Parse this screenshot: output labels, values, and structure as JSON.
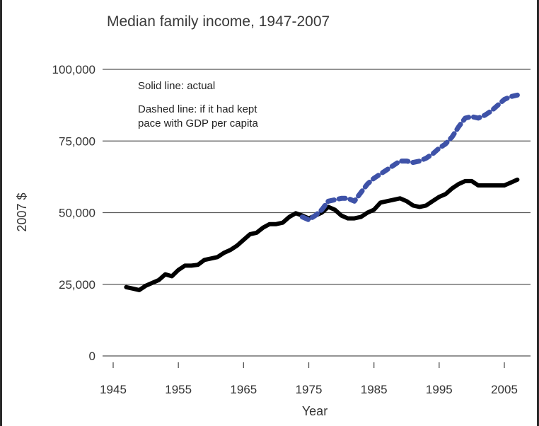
{
  "chart_data": {
    "type": "line",
    "title": "Median family income, 1947-2007",
    "xlabel": "Year",
    "ylabel": "2007 $",
    "xlim": [
      1945,
      2008
    ],
    "ylim": [
      0,
      100000
    ],
    "x_ticks": [
      1945,
      1955,
      1965,
      1975,
      1985,
      1995,
      2005
    ],
    "y_ticks": [
      0,
      25000,
      50000,
      75000,
      100000
    ],
    "x_tick_labels": [
      "1945",
      "1955",
      "1965",
      "1975",
      "1985",
      "1995",
      "2005"
    ],
    "y_tick_labels": [
      "0",
      "25,000",
      "50,000",
      "75,000",
      "100,000"
    ],
    "grid": "horizontal",
    "annotations": [
      "Solid line: actual",
      "Dashed line: if it had kept",
      "pace with GDP per capita"
    ],
    "series": [
      {
        "name": "actual",
        "style": "solid",
        "color": "#000000",
        "x": [
          1947,
          1948,
          1949,
          1950,
          1951,
          1952,
          1953,
          1954,
          1955,
          1956,
          1957,
          1958,
          1959,
          1960,
          1961,
          1962,
          1963,
          1964,
          1965,
          1966,
          1967,
          1968,
          1969,
          1970,
          1971,
          1972,
          1973,
          1974,
          1975,
          1976,
          1977,
          1978,
          1979,
          1980,
          1981,
          1982,
          1983,
          1984,
          1985,
          1986,
          1987,
          1988,
          1989,
          1990,
          1991,
          1992,
          1993,
          1994,
          1995,
          1996,
          1997,
          1998,
          1999,
          2000,
          2001,
          2002,
          2003,
          2004,
          2005,
          2006,
          2007
        ],
        "values": [
          24000,
          23500,
          23000,
          24500,
          25500,
          26500,
          28500,
          27800,
          30000,
          31500,
          31500,
          31800,
          33500,
          34000,
          34500,
          36000,
          37000,
          38500,
          40500,
          42500,
          43000,
          44800,
          46000,
          46000,
          46500,
          48500,
          49800,
          49000,
          48000,
          49000,
          50000,
          52000,
          51000,
          49000,
          48000,
          48000,
          48500,
          50000,
          51000,
          53500,
          54000,
          54500,
          55000,
          54000,
          52500,
          52000,
          52500,
          54000,
          55500,
          56500,
          58500,
          60000,
          61000,
          61000,
          59500,
          59500,
          59500,
          59500,
          59500,
          60500,
          61500
        ]
      },
      {
        "name": "if it had kept pace with GDP per capita",
        "style": "dashed",
        "color": "#3e52a8",
        "x": [
          1974,
          1975,
          1976,
          1977,
          1978,
          1979,
          1980,
          1981,
          1982,
          1983,
          1984,
          1985,
          1986,
          1987,
          1988,
          1989,
          1990,
          1991,
          1992,
          1993,
          1994,
          1995,
          1996,
          1997,
          1998,
          1999,
          2000,
          2001,
          2002,
          2003,
          2004,
          2005,
          2006,
          2007
        ],
        "values": [
          48500,
          47500,
          49000,
          51000,
          54000,
          54500,
          55000,
          55000,
          54000,
          57000,
          60000,
          62000,
          63500,
          65000,
          66500,
          68000,
          68000,
          67500,
          68000,
          69000,
          70500,
          72500,
          74000,
          76500,
          80000,
          83000,
          83500,
          83000,
          84000,
          85500,
          87500,
          89500,
          90500,
          91000
        ]
      }
    ]
  }
}
